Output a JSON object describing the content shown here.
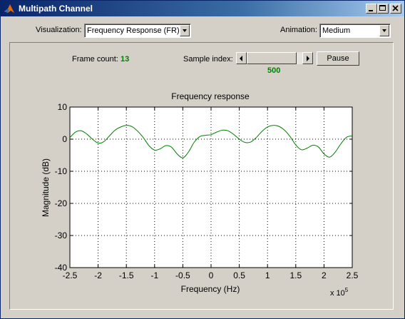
{
  "window": {
    "title": "Multipath Channel"
  },
  "controls": {
    "visualization_label": "Visualization:",
    "visualization_value": "Frequency Response (FR)",
    "animation_label": "Animation:",
    "animation_value": "Medium"
  },
  "status": {
    "frame_count_label": "Frame count:",
    "frame_count_value": "13",
    "sample_index_label": "Sample index:",
    "sample_index_value": "500",
    "pause_label": "Pause"
  },
  "colors": {
    "trace": "#008000",
    "value_text": "#008000",
    "titlebar": "#0a246a"
  },
  "chart_data": {
    "type": "line",
    "title": "Frequency response",
    "xlabel": "Frequency (Hz)",
    "ylabel": "Magnitude (dB)",
    "x_multiplier_label": "x 10",
    "x_multiplier_exp": "5",
    "xlim": [
      -2.5,
      2.5
    ],
    "ylim": [
      -40,
      10
    ],
    "xticks": [
      "-2.5",
      "-2",
      "-1.5",
      "-1",
      "-0.5",
      "0",
      "0.5",
      "1",
      "1.5",
      "2",
      "2.5"
    ],
    "yticks": [
      "10",
      "0",
      "-10",
      "-20",
      "-30",
      "-40"
    ],
    "grid": true,
    "series": [
      {
        "x": [
          -2.5,
          -2.4,
          -2.3,
          -2.2,
          -2.1,
          -2.0,
          -1.9,
          -1.8,
          -1.7,
          -1.6,
          -1.5,
          -1.4,
          -1.3,
          -1.2,
          -1.1,
          -1.0,
          -0.9,
          -0.8,
          -0.7,
          -0.6,
          -0.5,
          -0.4,
          -0.3,
          -0.2,
          -0.1,
          0.0,
          0.1,
          0.2,
          0.3,
          0.4,
          0.5,
          0.6,
          0.7,
          0.8,
          0.9,
          1.0,
          1.1,
          1.2,
          1.3,
          1.4,
          1.5,
          1.6,
          1.7,
          1.8,
          1.9,
          2.0,
          2.1,
          2.2,
          2.3,
          2.4,
          2.5
        ],
        "y": [
          0.5,
          2.2,
          2.6,
          1.6,
          0.0,
          -1.2,
          -0.8,
          1.0,
          2.8,
          3.8,
          4.3,
          3.9,
          2.5,
          0.5,
          -2.0,
          -3.4,
          -3.0,
          -2.0,
          -2.5,
          -4.6,
          -5.8,
          -4.0,
          -1.0,
          0.8,
          1.2,
          1.4,
          2.2,
          2.8,
          2.6,
          1.5,
          0.0,
          -1.0,
          -0.9,
          0.5,
          2.4,
          3.8,
          4.3,
          4.0,
          2.8,
          0.8,
          -1.8,
          -3.3,
          -2.8,
          -1.9,
          -2.4,
          -4.6,
          -5.6,
          -4.0,
          -1.4,
          0.6,
          1.0
        ]
      }
    ]
  }
}
